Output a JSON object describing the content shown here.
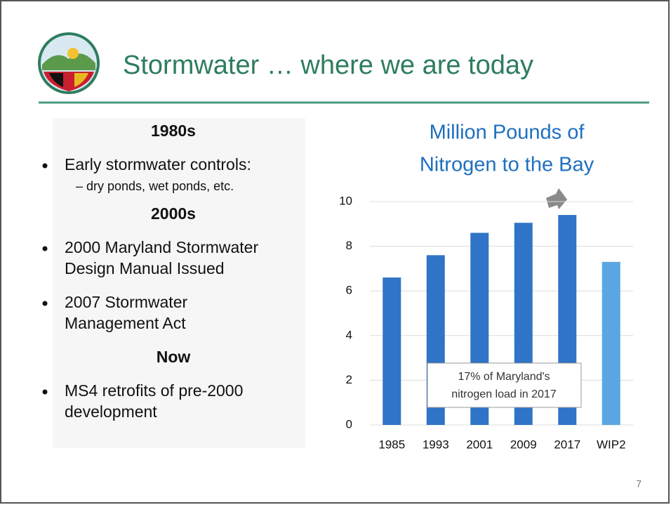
{
  "slide": {
    "title": "Stormwater … where we are today",
    "sections": [
      {
        "heading": "1980s",
        "bullets": [
          {
            "lines": [
              "Early stormwater controls:"
            ]
          }
        ],
        "sub": "– dry ponds, wet ponds, etc."
      },
      {
        "heading": "2000s",
        "bullets": [
          {
            "lines": [
              "2000 Maryland Stormwater",
              "Design Manual Issued"
            ]
          },
          {
            "lines": [
              "2007 Stormwater",
              "Management Act"
            ]
          }
        ]
      },
      {
        "heading": "Now",
        "bullets": [
          {
            "lines": [
              "MS4 retrofits of pre-2000",
              "development"
            ]
          }
        ]
      }
    ],
    "page_number": "7"
  },
  "chart_data": {
    "type": "bar",
    "title": [
      "Million Pounds of",
      "Nitrogen to the Bay"
    ],
    "categories": [
      "1985",
      "1993",
      "2001",
      "2009",
      "2017",
      "WIP2"
    ],
    "values": [
      6.6,
      7.6,
      8.6,
      9.05,
      9.4,
      7.3
    ],
    "colors": [
      "#2f74c6",
      "#2f74c6",
      "#2f74c6",
      "#2f74c6",
      "#2f74c6",
      "#5aa6e2"
    ],
    "ylim": [
      0,
      10
    ],
    "yticks": [
      0,
      2,
      4,
      6,
      8,
      10
    ],
    "grid": true,
    "annotation": [
      "17% of Maryland's",
      "nitrogen load in 2017"
    ]
  }
}
